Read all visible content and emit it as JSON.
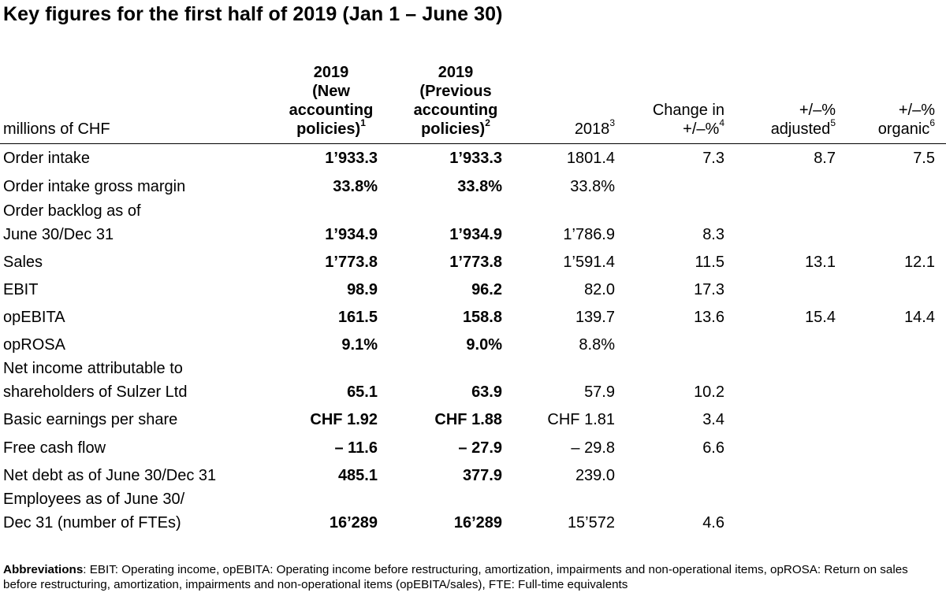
{
  "title": "Key figures for the first half of 2019 (Jan 1 – June 30)",
  "header": {
    "label_col": "millions of CHF",
    "col1": {
      "lines": [
        "2019",
        "(New",
        "accounting"
      ],
      "last": "policies)",
      "sup": "1"
    },
    "col2": {
      "lines": [
        "2019",
        "(Previous",
        "accounting"
      ],
      "last": "policies)",
      "sup": "2"
    },
    "col3": {
      "last": "2018",
      "sup": "3"
    },
    "col4": {
      "line1": "Change in",
      "last": "+/–%",
      "sup": "4"
    },
    "col5": {
      "line1": "+/–%",
      "last": "adjusted",
      "sup": "5"
    },
    "col6": {
      "line1": "+/–%",
      "last": "organic",
      "sup": "6"
    }
  },
  "rows": [
    {
      "label": "Order intake",
      "new": "1’933.3",
      "prev": "1’933.3",
      "y2018": "1801.4",
      "change": "7.3",
      "adjusted": "8.7",
      "organic": "7.5"
    },
    {
      "label": "Order intake gross margin",
      "new": "33.8%",
      "prev": "33.8%",
      "y2018": "33.8%",
      "change": "",
      "adjusted": "",
      "organic": ""
    },
    {
      "label_line1": "Order backlog as of",
      "label": "June 30/Dec 31",
      "new": "1’934.9",
      "prev": "1’934.9",
      "y2018": "1’786.9",
      "change": "8.3",
      "adjusted": "",
      "organic": ""
    },
    {
      "label": "Sales",
      "new": "1’773.8",
      "prev": "1’773.8",
      "y2018": "1’591.4",
      "change": "11.5",
      "adjusted": "13.1",
      "organic": "12.1"
    },
    {
      "label": "EBIT",
      "new": "98.9",
      "prev": "96.2",
      "y2018": "82.0",
      "change": "17.3",
      "adjusted": "",
      "organic": ""
    },
    {
      "label": "opEBITA",
      "new": "161.5",
      "prev": "158.8",
      "y2018": "139.7",
      "change": "13.6",
      "adjusted": "15.4",
      "organic": "14.4"
    },
    {
      "label": "opROSA",
      "new": "9.1%",
      "prev": "9.0%",
      "y2018": "8.8%",
      "change": "",
      "adjusted": "",
      "organic": ""
    },
    {
      "label_line1": "Net income attributable to",
      "label": "shareholders of Sulzer Ltd",
      "new": "65.1",
      "prev": "63.9",
      "y2018": "57.9",
      "change": "10.2",
      "adjusted": "",
      "organic": ""
    },
    {
      "label": "Basic earnings per share",
      "new": "CHF 1.92",
      "prev": "CHF 1.88",
      "y2018": "CHF 1.81",
      "change": "3.4",
      "adjusted": "",
      "organic": ""
    },
    {
      "label": "Free cash flow",
      "new": "– 11.6",
      "prev": "– 27.9",
      "y2018": "– 29.8",
      "change": "6.6",
      "adjusted": "",
      "organic": ""
    },
    {
      "label": "Net debt as of June 30/Dec 31",
      "new": "485.1",
      "prev": "377.9",
      "y2018": "239.0",
      "change": "",
      "adjusted": "",
      "organic": ""
    },
    {
      "label_line1": "Employees as of June 30/",
      "label": "Dec 31 (number of FTEs)",
      "new": "16’289",
      "prev": "16’289",
      "y2018": "15’572",
      "change": "4.6",
      "adjusted": "",
      "organic": ""
    }
  ],
  "footnote": {
    "bold": "Abbreviations",
    "text": ": EBIT: Operating income, opEBITA: Operating income before restructuring, amortization, impairments and non-operational items, opROSA: Return on sales before restructuring, amortization, impairments and non-operational items (opEBITA/sales), FTE: Full-time equivalents"
  }
}
